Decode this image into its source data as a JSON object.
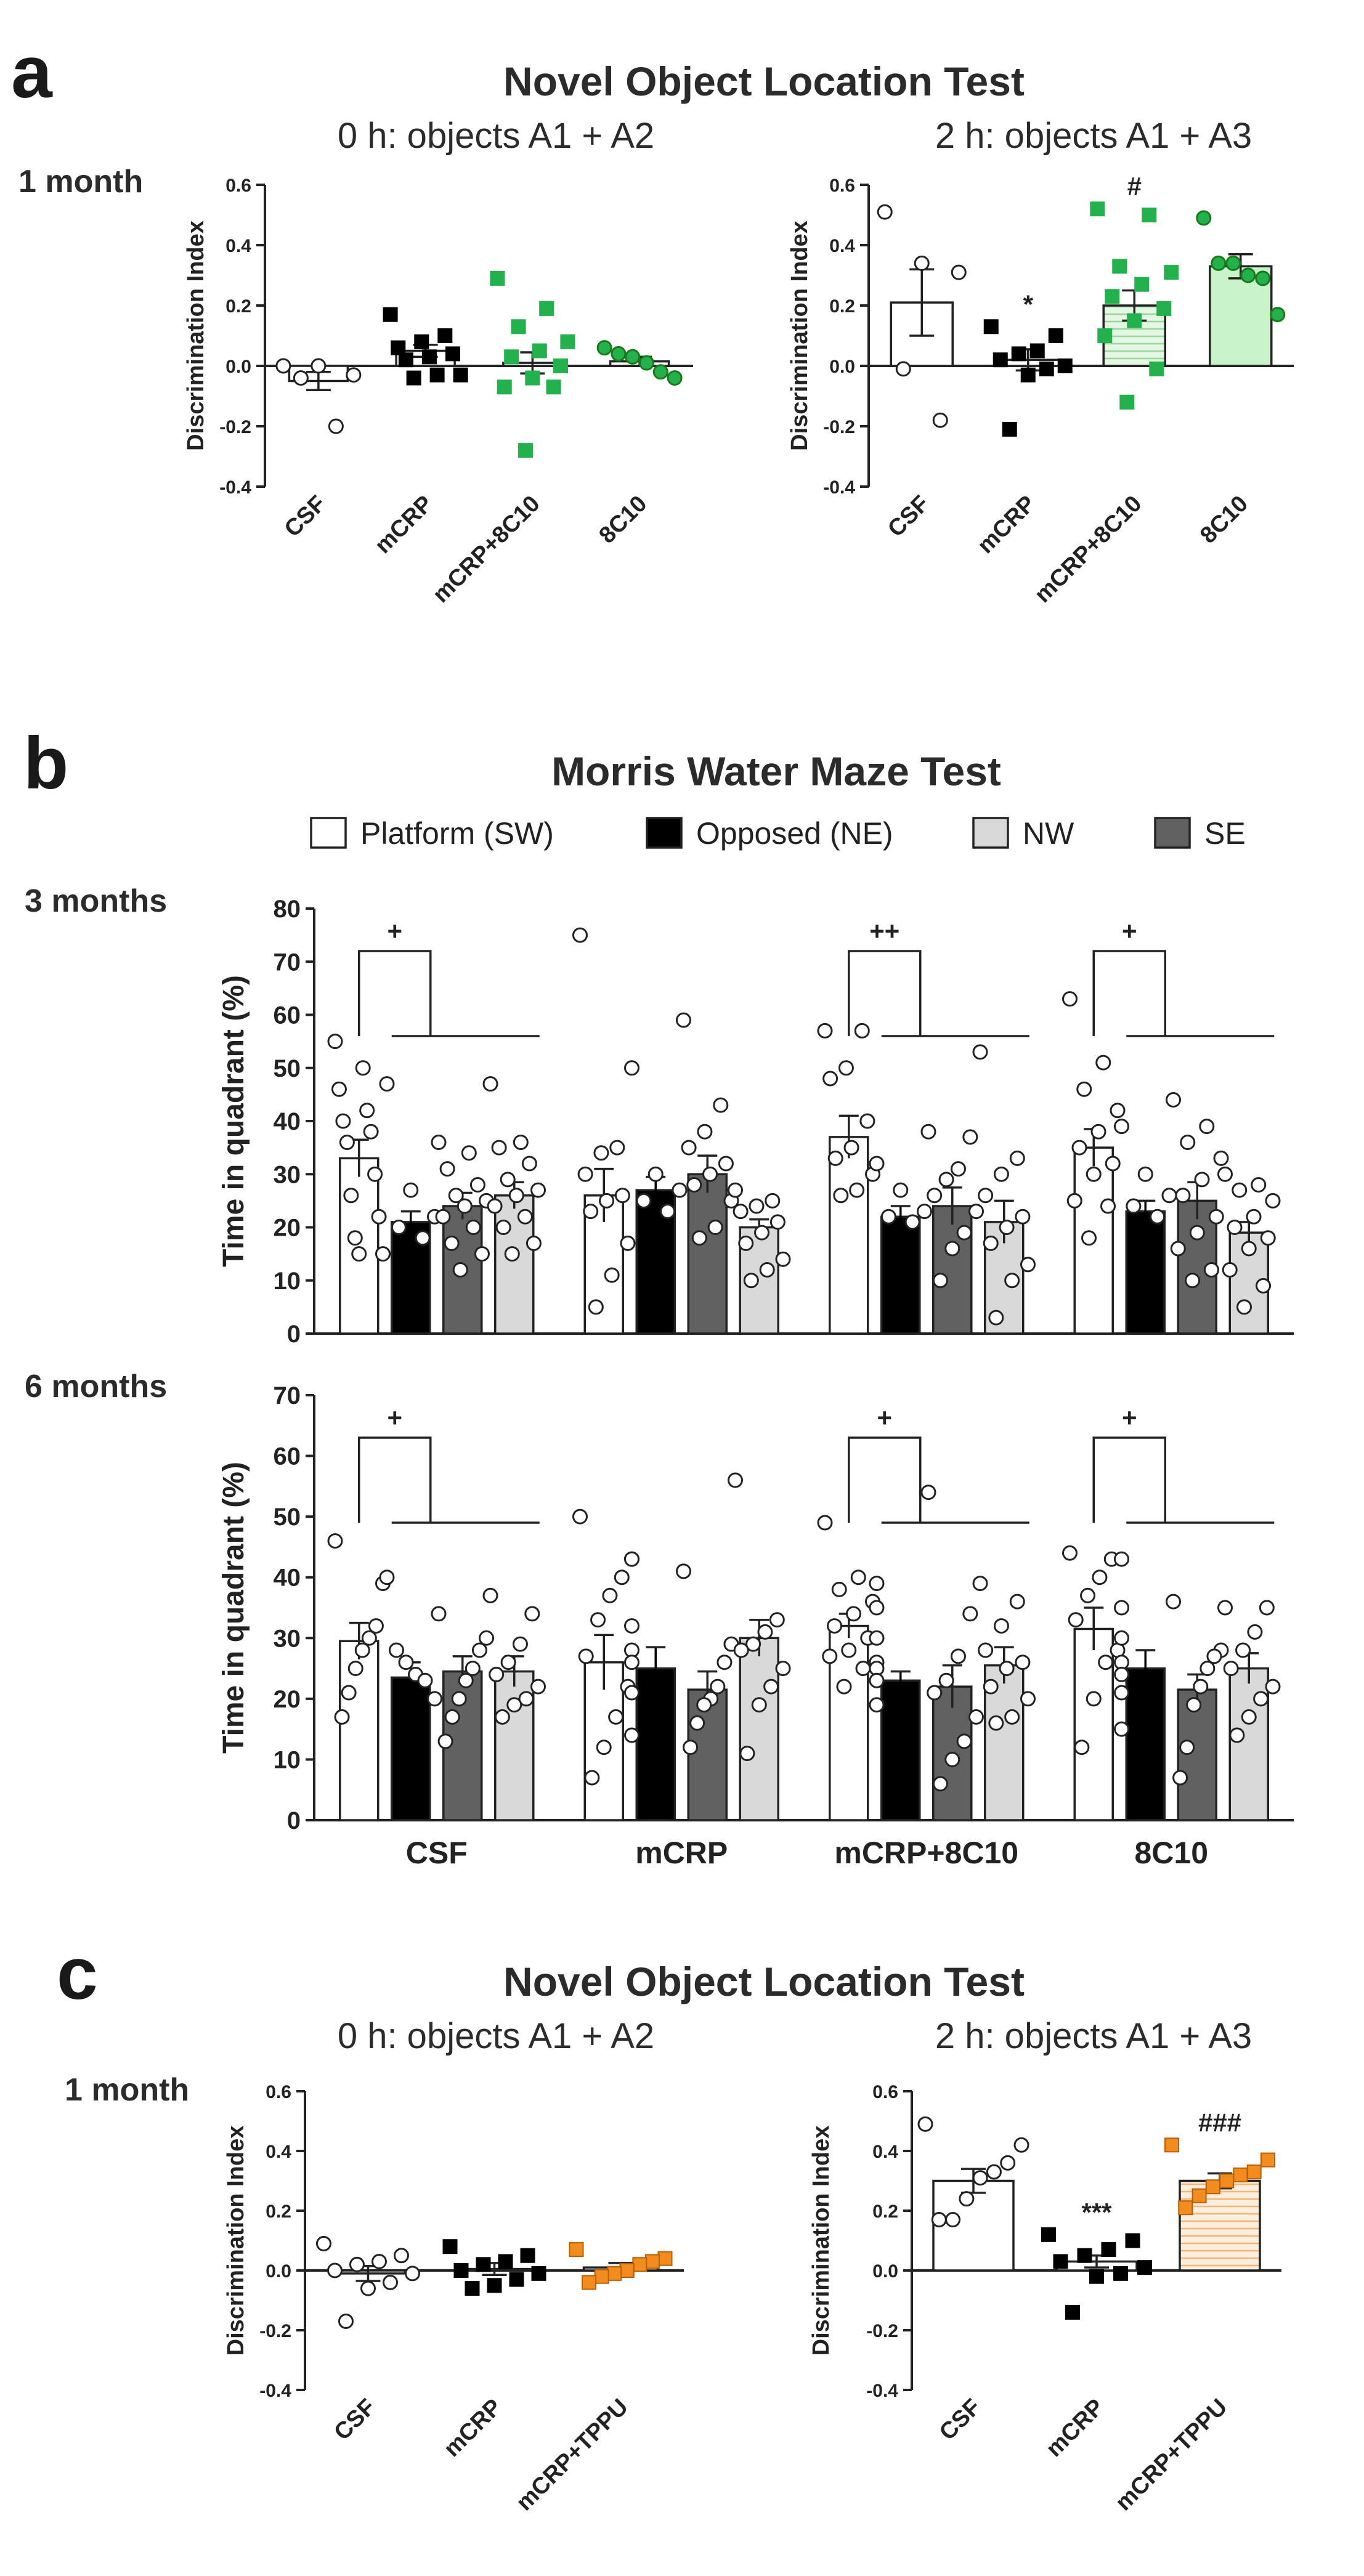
{
  "chart_data": [
    {
      "id": "a_0h",
      "type": "bar",
      "panel": "a",
      "panel_title": "Novel Object Location Test",
      "row_label": "1 month",
      "title": "0 h: objects A1 + A2",
      "xlabel": "",
      "ylabel": "Discrimination Index",
      "ylim": [
        -0.4,
        0.6
      ],
      "yticks": [
        "-0.4",
        "-0.2",
        "0.0",
        "0.2",
        "0.4",
        "0.6"
      ],
      "categories": [
        "CSF",
        "mCRP",
        "mCRP+8C10",
        "8C10"
      ],
      "values": [
        -0.05,
        0.05,
        0.01,
        0.015
      ],
      "sem": [
        0.03,
        0.02,
        0.035,
        0.015
      ],
      "bar_colors": [
        "#ffffff",
        "#ffffff",
        "#ffffff",
        "#ffffff"
      ],
      "bar_patterns": [
        "none",
        "none",
        "none",
        "none"
      ],
      "marker_shapes": [
        "circle",
        "square",
        "square",
        "circle"
      ],
      "marker_colors": [
        "#ffffff",
        "#000000",
        "#22b14c",
        "#22b14c"
      ],
      "points": [
        [
          0.0,
          0.0,
          -0.03,
          -0.04,
          -0.2
        ],
        [
          0.17,
          0.1,
          0.08,
          0.06,
          0.04,
          0.03,
          0.02,
          -0.03,
          -0.03,
          -0.04
        ],
        [
          0.29,
          0.19,
          0.13,
          0.08,
          0.05,
          0.03,
          0.0,
          -0.04,
          -0.07,
          -0.07,
          -0.28
        ],
        [
          0.06,
          0.04,
          0.03,
          0.01,
          -0.02,
          -0.04
        ]
      ],
      "annotations": [
        "",
        "",
        "",
        ""
      ]
    },
    {
      "id": "a_2h",
      "type": "bar",
      "panel": "a",
      "title": "2 h: objects A1 + A3",
      "xlabel": "",
      "ylabel": "Discrimination Index",
      "ylim": [
        -0.4,
        0.6
      ],
      "yticks": [
        "-0.4",
        "-0.2",
        "0.0",
        "0.2",
        "0.4",
        "0.6"
      ],
      "categories": [
        "CSF",
        "mCRP",
        "mCRP+8C10",
        "8C10"
      ],
      "values": [
        0.21,
        0.02,
        0.2,
        0.33
      ],
      "sem": [
        0.11,
        0.035,
        0.05,
        0.04
      ],
      "bar_colors": [
        "#ffffff",
        "#ffffff",
        "#daf5da",
        "#c9f3c9"
      ],
      "bar_patterns": [
        "none",
        "none",
        "hlines",
        "none"
      ],
      "marker_shapes": [
        "circle",
        "square",
        "square",
        "circle"
      ],
      "marker_colors": [
        "#ffffff",
        "#000000",
        "#22b14c",
        "#22b14c"
      ],
      "points": [
        [
          0.51,
          0.34,
          0.31,
          -0.01,
          -0.18
        ],
        [
          0.13,
          0.1,
          0.05,
          0.04,
          0.02,
          0.0,
          -0.01,
          -0.03,
          -0.21
        ],
        [
          0.52,
          0.5,
          0.33,
          0.31,
          0.27,
          0.23,
          0.19,
          0.15,
          0.1,
          -0.01,
          -0.12
        ],
        [
          0.49,
          0.34,
          0.34,
          0.3,
          0.29,
          0.17
        ]
      ],
      "annotations": [
        "",
        "*",
        "#",
        ""
      ]
    },
    {
      "id": "b_3m",
      "type": "bar",
      "panel": "b",
      "panel_title": "Morris Water Maze Test",
      "row_label": "3 months",
      "xlabel": "",
      "ylabel": "Time in quadrant (%)",
      "ylim": [
        0,
        80
      ],
      "yticks": [
        "0",
        "10",
        "20",
        "30",
        "40",
        "50",
        "60",
        "70",
        "80"
      ],
      "categories": [
        "CSF",
        "mCRP",
        "mCRP+8C10",
        "8C10"
      ],
      "series_order": [
        "Platform (SW)",
        "Opposed (NE)",
        "SE",
        "NW"
      ],
      "series": [
        {
          "name": "Platform (SW)",
          "color": "#ffffff",
          "values": [
            33,
            26,
            37,
            35
          ],
          "sem": [
            3.5,
            5,
            4,
            3.5
          ],
          "points": [
            [
              55,
              50,
              46,
              42,
              40,
              38,
              36,
              30,
              26,
              22,
              18,
              15,
              15
            ],
            [
              75,
              35,
              34,
              30,
              26,
              25,
              23,
              17,
              11,
              5
            ],
            [
              57,
              57,
              50,
              48,
              40,
              35,
              33,
              30,
              27,
              26
            ],
            [
              63,
              51,
              46,
              42,
              38,
              35,
              32,
              30,
              25,
              24,
              18
            ]
          ]
        },
        {
          "name": "Opposed (NE)",
          "color": "#000000",
          "values": [
            21,
            27,
            22,
            23
          ],
          "sem": [
            2,
            2.5,
            2,
            2
          ],
          "points": [
            [
              47,
              27,
              22,
              20,
              18
            ],
            [
              50,
              30,
              27,
              25,
              23
            ],
            [
              32,
              27,
              23,
              22,
              21
            ],
            [
              39,
              30,
              26,
              24,
              22
            ]
          ]
        },
        {
          "name": "SE",
          "color": "#616161",
          "values": [
            24,
            30,
            24,
            25
          ],
          "sem": [
            2.5,
            3.5,
            3.5,
            3.5
          ],
          "points": [
            [
              36,
              34,
              31,
              28,
              26,
              25,
              24,
              22,
              20,
              17,
              15,
              12
            ],
            [
              59,
              43,
              38,
              35,
              32,
              30,
              28,
              25,
              20,
              18
            ],
            [
              38,
              37,
              31,
              29,
              26,
              23,
              19,
              16,
              10
            ],
            [
              44,
              39,
              36,
              33,
              29,
              26,
              22,
              19,
              16,
              12,
              10
            ]
          ]
        },
        {
          "name": "NW",
          "color": "#d9d9d9",
          "values": [
            26,
            20,
            21,
            19
          ],
          "sem": [
            2.5,
            1.5,
            4,
            2
          ],
          "points": [
            [
              47,
              36,
              35,
              32,
              29,
              27,
              26,
              24,
              22,
              20,
              17,
              15
            ],
            [
              27,
              25,
              24,
              23,
              21,
              19,
              17,
              14,
              12,
              10
            ],
            [
              53,
              33,
              30,
              26,
              22,
              20,
              17,
              13,
              10,
              3
            ],
            [
              30,
              28,
              27,
              25,
              22,
              20,
              18,
              16,
              12,
              9,
              5
            ]
          ]
        }
      ],
      "annotations": [
        "+",
        "",
        "++",
        "+"
      ]
    },
    {
      "id": "b_6m",
      "type": "bar",
      "panel": "b",
      "row_label": "6 months",
      "xlabel": "",
      "ylabel": "Time in quadrant (%)",
      "ylim": [
        0,
        70
      ],
      "yticks": [
        "0",
        "10",
        "20",
        "30",
        "40",
        "50",
        "60",
        "70"
      ],
      "categories": [
        "CSF",
        "mCRP",
        "mCRP+8C10",
        "8C10"
      ],
      "series_order": [
        "Platform (SW)",
        "Opposed (NE)",
        "SE",
        "NW"
      ],
      "series": [
        {
          "name": "Platform (SW)",
          "color": "#ffffff",
          "values": [
            29.5,
            26,
            32,
            31.5
          ],
          "sem": [
            3,
            4.5,
            2,
            3.5
          ],
          "points": [
            [
              46,
              39,
              32,
              30,
              28,
              25,
              21,
              17
            ],
            [
              50,
              40,
              37,
              33,
              27,
              22,
              17,
              12,
              7
            ],
            [
              49,
              40,
              38,
              36,
              34,
              32,
              30,
              28,
              27,
              25,
              22
            ],
            [
              44,
              43,
              40,
              37,
              33,
              28,
              26,
              20,
              12
            ]
          ]
        },
        {
          "name": "Opposed (NE)",
          "color": "#000000",
          "values": [
            23.5,
            25,
            23,
            25
          ],
          "sem": [
            2.5,
            3.5,
            1.5,
            3
          ],
          "points": [
            [
              40,
              28,
              26,
              24,
              23,
              20
            ],
            [
              43,
              43,
              32,
              28,
              26,
              21,
              14
            ],
            [
              39,
              35,
              30,
              26,
              25,
              23,
              19
            ],
            [
              43,
              35,
              30,
              26,
              24,
              21,
              15
            ]
          ]
        },
        {
          "name": "SE",
          "color": "#616161",
          "values": [
            24.5,
            21.5,
            22,
            21.5
          ],
          "sem": [
            2.5,
            3,
            3.5,
            2.5
          ],
          "points": [
            [
              34,
              30,
              28,
              25,
              23,
              20,
              17,
              13
            ],
            [
              41,
              29,
              26,
              22,
              20,
              19,
              16,
              12
            ],
            [
              54,
              34,
              27,
              23,
              21,
              17,
              13,
              10,
              6
            ],
            [
              36,
              28,
              27,
              25,
              22,
              19,
              12,
              7
            ]
          ]
        },
        {
          "name": "NW",
          "color": "#d9d9d9",
          "values": [
            24.5,
            30,
            25.5,
            25
          ],
          "sem": [
            2.5,
            3,
            3,
            2.5
          ],
          "points": [
            [
              37,
              34,
              29,
              26,
              24,
              22,
              20,
              19,
              17
            ],
            [
              56,
              33,
              31,
              29,
              28,
              25,
              22,
              19,
              11
            ],
            [
              39,
              36,
              32,
              28,
              26,
              25,
              22,
              20,
              17,
              16
            ],
            [
              35,
              35,
              31,
              28,
              25,
              22,
              20,
              17,
              14
            ]
          ]
        }
      ],
      "annotations": [
        "+",
        "",
        "+",
        "+"
      ]
    },
    {
      "id": "c_0h",
      "type": "bar",
      "panel": "c",
      "panel_title": "Novel Object Location Test",
      "row_label": "1 month",
      "title": "0 h: objects A1 + A2",
      "xlabel": "",
      "ylabel": "Discrimination Index",
      "ylim": [
        -0.4,
        0.6
      ],
      "yticks": [
        "-0.4",
        "-0.2",
        "0.0",
        "0.2",
        "0.4",
        "0.6"
      ],
      "categories": [
        "CSF",
        "mCRP",
        "mCRP+TPPU"
      ],
      "values": [
        -0.01,
        0.005,
        0.01
      ],
      "sem": [
        0.025,
        0.02,
        0.015
      ],
      "bar_colors": [
        "#ffffff",
        "#ffffff",
        "#ffffff"
      ],
      "bar_patterns": [
        "none",
        "none",
        "none"
      ],
      "marker_shapes": [
        "circle",
        "square",
        "square"
      ],
      "marker_colors": [
        "#ffffff",
        "#000000",
        "#f28c1e"
      ],
      "points": [
        [
          0.09,
          0.05,
          0.03,
          0.02,
          0.0,
          -0.01,
          -0.04,
          -0.06,
          -0.17
        ],
        [
          0.08,
          0.05,
          0.03,
          0.02,
          0.0,
          -0.01,
          -0.03,
          -0.05,
          -0.06
        ],
        [
          0.07,
          0.04,
          0.03,
          0.02,
          0.0,
          -0.01,
          -0.02,
          -0.04
        ]
      ],
      "annotations": [
        "",
        "",
        ""
      ]
    },
    {
      "id": "c_2h",
      "type": "bar",
      "panel": "c",
      "title": "2 h: objects A1 + A3",
      "xlabel": "",
      "ylabel": "Discrimination Index",
      "ylim": [
        -0.4,
        0.6
      ],
      "yticks": [
        "-0.4",
        "-0.2",
        "0.0",
        "0.2",
        "0.4",
        "0.6"
      ],
      "categories": [
        "CSF",
        "mCRP",
        "mCRP+TPPU"
      ],
      "values": [
        0.3,
        0.03,
        0.3
      ],
      "sem": [
        0.04,
        0.02,
        0.025
      ],
      "bar_colors": [
        "#ffffff",
        "#ffffff",
        "#fde9d2"
      ],
      "bar_patterns": [
        "none",
        "none",
        "hlines-orange"
      ],
      "marker_shapes": [
        "circle",
        "square",
        "square"
      ],
      "marker_colors": [
        "#ffffff",
        "#000000",
        "#f28c1e"
      ],
      "points": [
        [
          0.49,
          0.42,
          0.36,
          0.33,
          0.31,
          0.24,
          0.17,
          0.17
        ],
        [
          0.12,
          0.1,
          0.07,
          0.05,
          0.03,
          0.01,
          -0.01,
          -0.02,
          -0.14
        ],
        [
          0.42,
          0.37,
          0.33,
          0.32,
          0.3,
          0.28,
          0.25,
          0.21
        ]
      ],
      "annotations": [
        "",
        "***",
        "###"
      ]
    }
  ],
  "panels": {
    "a": {
      "letter": "a",
      "title": "Novel Object Location Test",
      "row_label": "1 month",
      "left_title": "0 h: objects A1 + A2",
      "right_title": "2 h: objects A1 + A3"
    },
    "b": {
      "letter": "b",
      "title": "Morris Water Maze Test",
      "row1_label": "3 months",
      "row2_label": "6 months"
    },
    "c": {
      "letter": "c",
      "title": "Novel Object Location Test",
      "row_label": "1 month",
      "left_title": "0 h: objects A1 + A2",
      "right_title": "2 h: objects A1 + A3"
    }
  },
  "legend": [
    {
      "label": "Platform (SW)",
      "color": "#ffffff"
    },
    {
      "label": "Opposed (NE)",
      "color": "#000000"
    },
    {
      "label": "NW",
      "color": "#d9d9d9"
    },
    {
      "label": "SE",
      "color": "#616161"
    }
  ]
}
